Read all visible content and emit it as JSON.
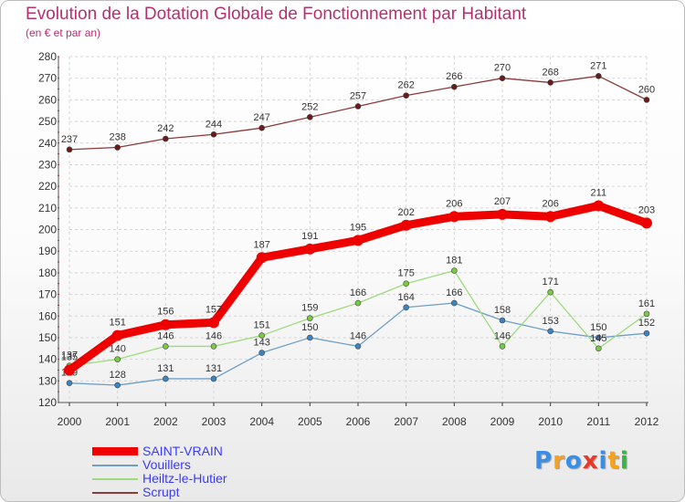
{
  "title": "Evolution de la Dotation Globale de Fonctionnement par Habitant",
  "subtitle": "(en € et par an)",
  "logo": {
    "text": "Proxiti",
    "colors": [
      "#3a8ee6",
      "#f7a21b",
      "#3a8ee6",
      "#e8392b",
      "#3a8ee6",
      "#f7a21b",
      "#39b54a"
    ]
  },
  "chart_data": {
    "type": "line",
    "title": "Evolution de la Dotation Globale de Fonctionnement par Habitant",
    "subtitle": "(en € et par an)",
    "xlabel": "",
    "ylabel": "",
    "ylim": [
      120,
      280
    ],
    "yticks": [
      120,
      130,
      140,
      150,
      160,
      170,
      180,
      190,
      200,
      210,
      220,
      230,
      240,
      250,
      260,
      270,
      280
    ],
    "grid": true,
    "legend_position": "bottom-left",
    "x": [
      "2000",
      "2001",
      "2002",
      "2003",
      "2004",
      "2005",
      "2006",
      "2007",
      "2008",
      "2009",
      "2010",
      "2011",
      "2012"
    ],
    "series": [
      {
        "name": "Scrupt",
        "color": "#8c3a3a",
        "marker": "#6b1a1a",
        "values": [
          237,
          238,
          242,
          244,
          247,
          252,
          257,
          262,
          266,
          270,
          268,
          271,
          260
        ]
      },
      {
        "name": "Vouillers",
        "color": "#6f9fc7",
        "marker": "#3a84c4",
        "values": [
          129,
          128,
          131,
          131,
          143,
          150,
          146,
          164,
          166,
          158,
          153,
          150,
          152
        ]
      },
      {
        "name": "Heiltz-le-Hutier",
        "color": "#9ddb7d",
        "marker": "#7ac943",
        "values": [
          137,
          140,
          146,
          146,
          151,
          159,
          166,
          175,
          181,
          146,
          171,
          145,
          161
        ]
      },
      {
        "name": "SAINT-VRAIN",
        "color": "#ee0000",
        "marker": "#ee0000",
        "values": [
          135,
          151,
          156,
          157,
          187,
          191,
          195,
          202,
          206,
          207,
          206,
          211,
          203
        ]
      }
    ],
    "legend_order": [
      "SAINT-VRAIN",
      "Vouillers",
      "Heiltz-le-Hutier",
      "Scrupt"
    ]
  }
}
